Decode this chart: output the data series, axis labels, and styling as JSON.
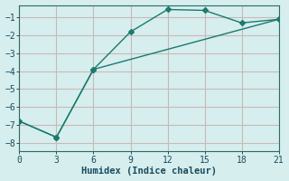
{
  "xlabel": "Humidex (Indice chaleur)",
  "background_color": "#d6eeed",
  "grid_color": "#c0d8d8",
  "line_color": "#1a7a6e",
  "xlim": [
    0,
    21
  ],
  "ylim": [
    -8.5,
    -0.3
  ],
  "xticks": [
    0,
    3,
    6,
    9,
    12,
    15,
    18,
    21
  ],
  "yticks": [
    -8,
    -7,
    -6,
    -5,
    -4,
    -3,
    -2,
    -1
  ],
  "line1_x": [
    0,
    3,
    6,
    9,
    12,
    15,
    18,
    21
  ],
  "line1_y": [
    -6.8,
    -7.7,
    -3.9,
    -1.8,
    -0.55,
    -0.6,
    -1.3,
    -1.1
  ],
  "line2_x": [
    0,
    3,
    6,
    21
  ],
  "line2_y": [
    -6.8,
    -7.7,
    -3.9,
    -1.1
  ],
  "marker": "D",
  "marker_size": 3,
  "line_width": 1.0,
  "xlabel_fontsize": 7.5,
  "tick_fontsize": 7
}
